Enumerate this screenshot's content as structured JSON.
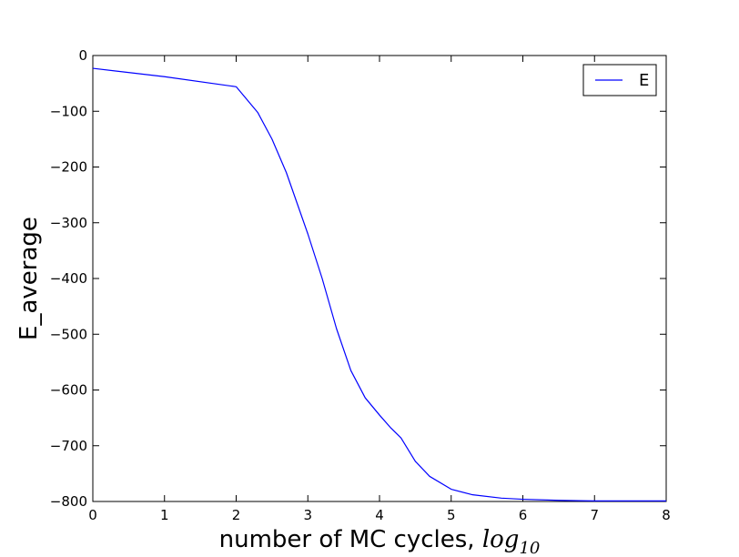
{
  "chart_data": {
    "type": "line",
    "title": "",
    "xlabel": "number of MC cycles, ",
    "xlabel_math": "log",
    "xlabel_math_subscript": "10",
    "ylabel": "E_average",
    "xlim": [
      0,
      8
    ],
    "ylim": [
      -800,
      0
    ],
    "x_ticks": [
      "0",
      "1",
      "2",
      "3",
      "4",
      "5",
      "6",
      "7",
      "8"
    ],
    "y_ticks": [
      "0",
      "−100",
      "−200",
      "−300",
      "−400",
      "−500",
      "−600",
      "−700",
      "−800"
    ],
    "grid": false,
    "legend_position": "top-right",
    "series": [
      {
        "name": "E",
        "color": "#0000ff",
        "x": [
          0,
          1,
          2,
          2.3,
          2.5,
          2.7,
          3.0,
          3.2,
          3.4,
          3.6,
          3.8,
          4.0,
          4.15,
          4.3,
          4.5,
          4.7,
          5.0,
          5.3,
          5.7,
          6.0,
          6.5,
          7.0,
          8.0
        ],
        "y": [
          -23,
          -38,
          -56,
          -102,
          -150,
          -210,
          -320,
          -400,
          -490,
          -565,
          -614,
          -645,
          -667,
          -686,
          -728,
          -755,
          -778,
          -788,
          -794,
          -796,
          -798,
          -799,
          -799
        ]
      }
    ]
  }
}
